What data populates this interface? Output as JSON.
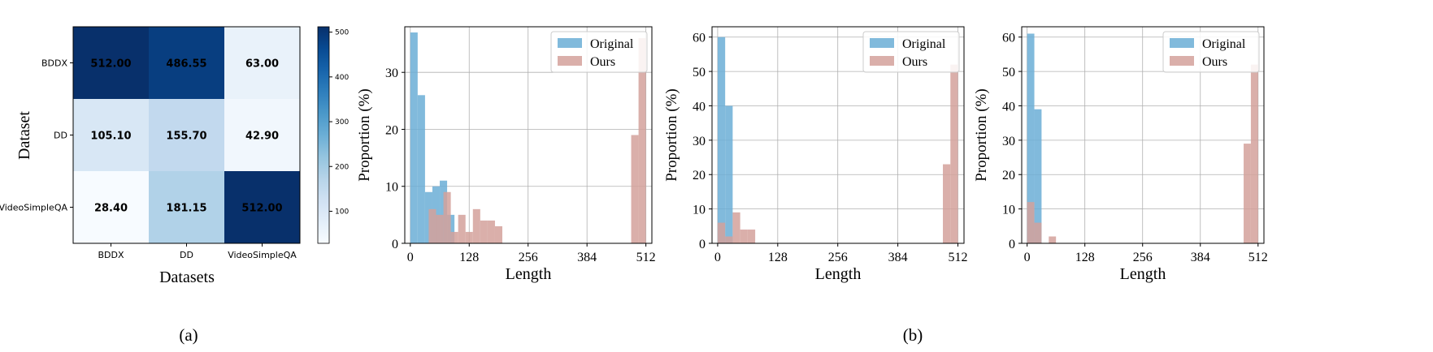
{
  "colors": {
    "original": "#6baed6",
    "ours": "#d4a19b",
    "heatmap_low": "#f7fbff",
    "heatmap_high": "#08306b",
    "grid": "#b0b0b0"
  },
  "captions": [
    "(a)",
    "(b)"
  ],
  "chart_data": [
    {
      "type": "heatmap",
      "xlabel": "Datasets",
      "ylabel": "Dataset",
      "x_categories": [
        "BDDX",
        "DD",
        "VideoSimpleQA"
      ],
      "y_categories": [
        "BDDX",
        "DD",
        "VideoSimpleQA"
      ],
      "values": [
        [
          512.0,
          486.55,
          63.0
        ],
        [
          105.1,
          155.7,
          42.9
        ],
        [
          28.4,
          181.15,
          512.0
        ]
      ],
      "value_labels": [
        [
          "512.00",
          "486.55",
          "63.00"
        ],
        [
          "105.10",
          "155.70",
          "42.90"
        ],
        [
          "28.40",
          "181.15",
          "512.00"
        ]
      ],
      "colorbar": {
        "min": 28.4,
        "max": 512,
        "ticks": [
          100,
          200,
          300,
          400,
          500
        ]
      }
    },
    {
      "type": "histogram",
      "xlabel": "Length",
      "ylabel": "Proportion (%)",
      "xlim": [
        -12,
        525
      ],
      "ylim": [
        0,
        38
      ],
      "xticks": [
        0,
        128,
        256,
        384,
        512
      ],
      "yticks": [
        0,
        10,
        20,
        30
      ],
      "legend_position": "top-right",
      "grid": true,
      "series": [
        {
          "name": "Original",
          "bins": [
            [
              0,
              16,
              37
            ],
            [
              16,
              32,
              26
            ],
            [
              32,
              48,
              9
            ],
            [
              48,
              64,
              10
            ],
            [
              64,
              80,
              11
            ],
            [
              80,
              96,
              5
            ]
          ]
        },
        {
          "name": "Ours",
          "bins": [
            [
              40,
              56,
              6
            ],
            [
              56,
              72,
              5
            ],
            [
              72,
              88,
              9
            ],
            [
              88,
              104,
              2
            ],
            [
              104,
              120,
              5
            ],
            [
              120,
              136,
              2
            ],
            [
              136,
              152,
              6
            ],
            [
              152,
              168,
              4
            ],
            [
              168,
              184,
              4
            ],
            [
              184,
              200,
              3
            ],
            [
              480,
              496,
              19
            ],
            [
              496,
              512,
              36
            ]
          ]
        }
      ]
    },
    {
      "type": "histogram",
      "xlabel": "Length",
      "ylabel": "Proportion (%)",
      "xlim": [
        -12,
        525
      ],
      "ylim": [
        0,
        63
      ],
      "xticks": [
        0,
        128,
        256,
        384,
        512
      ],
      "yticks": [
        0,
        10,
        20,
        30,
        40,
        50,
        60
      ],
      "legend_position": "top-right",
      "grid": true,
      "series": [
        {
          "name": "Original",
          "bins": [
            [
              0,
              16,
              60
            ],
            [
              16,
              32,
              40
            ]
          ]
        },
        {
          "name": "Ours",
          "bins": [
            [
              0,
              16,
              6
            ],
            [
              16,
              32,
              2
            ],
            [
              32,
              48,
              9
            ],
            [
              48,
              64,
              4
            ],
            [
              64,
              80,
              4
            ],
            [
              480,
              496,
              23
            ],
            [
              496,
              512,
              52
            ]
          ]
        }
      ]
    },
    {
      "type": "histogram",
      "xlabel": "Length",
      "ylabel": "Proportion (%)",
      "xlim": [
        -12,
        525
      ],
      "ylim": [
        0,
        63
      ],
      "xticks": [
        0,
        128,
        256,
        384,
        512
      ],
      "yticks": [
        0,
        10,
        20,
        30,
        40,
        50,
        60
      ],
      "legend_position": "top-right",
      "grid": true,
      "series": [
        {
          "name": "Original",
          "bins": [
            [
              0,
              16,
              61
            ],
            [
              16,
              32,
              39
            ]
          ]
        },
        {
          "name": "Ours",
          "bins": [
            [
              0,
              16,
              12
            ],
            [
              16,
              32,
              6
            ],
            [
              48,
              64,
              2
            ],
            [
              480,
              496,
              29
            ],
            [
              496,
              512,
              52
            ]
          ]
        }
      ]
    }
  ]
}
